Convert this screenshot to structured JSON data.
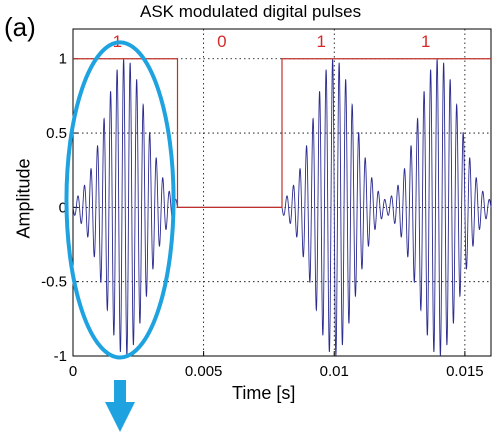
{
  "panel_label": "(a)",
  "colors": {
    "signal": "#2b2b8f",
    "digital": "#c0302a",
    "bit_label": "#d42a2a",
    "ellipse": "#1fa3e0",
    "arrow": "#1fa3e0",
    "grid": "#000000"
  },
  "chart_data": {
    "type": "line",
    "title": "ASK modulated digital pulses",
    "xlabel": "Time [s]",
    "ylabel": "Amplitude",
    "xlim": [
      0,
      0.016
    ],
    "ylim": [
      -1,
      1.2
    ],
    "x_ticks": [
      0,
      0.005,
      0.01,
      0.015
    ],
    "x_tick_labels": [
      "0",
      "0.005",
      "0.01",
      "0.015"
    ],
    "y_ticks": [
      -1,
      -0.5,
      0,
      0.5,
      1
    ],
    "y_tick_labels": [
      "-1",
      "-0.5",
      "0",
      "0.5",
      "1"
    ],
    "grid": true,
    "digital_signal": {
      "x": [
        0,
        0.004,
        0.004,
        0.008,
        0.008,
        0.016
      ],
      "y": [
        1,
        1,
        0,
        0,
        1,
        1
      ]
    },
    "bit_labels": [
      {
        "text": "1",
        "x": 0.0017
      },
      {
        "text": "0",
        "x": 0.0057
      },
      {
        "text": "1",
        "x": 0.0095
      },
      {
        "text": "1",
        "x": 0.0135
      }
    ],
    "modulated_signal": {
      "carrier_cycles_per_bit": 16,
      "pulses": [
        {
          "start": 0,
          "end": 0.004,
          "peak": 1
        },
        {
          "start": 0.008,
          "end": 0.012,
          "peak": 1
        },
        {
          "start": 0.012,
          "end": 0.016,
          "peak": 1
        }
      ]
    },
    "annotations": [
      {
        "type": "ellipse",
        "center_x": 0.0018,
        "center_y": 0.05,
        "rx": 0.00205,
        "ry": 1.06
      },
      {
        "type": "arrow-down",
        "x": 0.0018
      }
    ]
  }
}
